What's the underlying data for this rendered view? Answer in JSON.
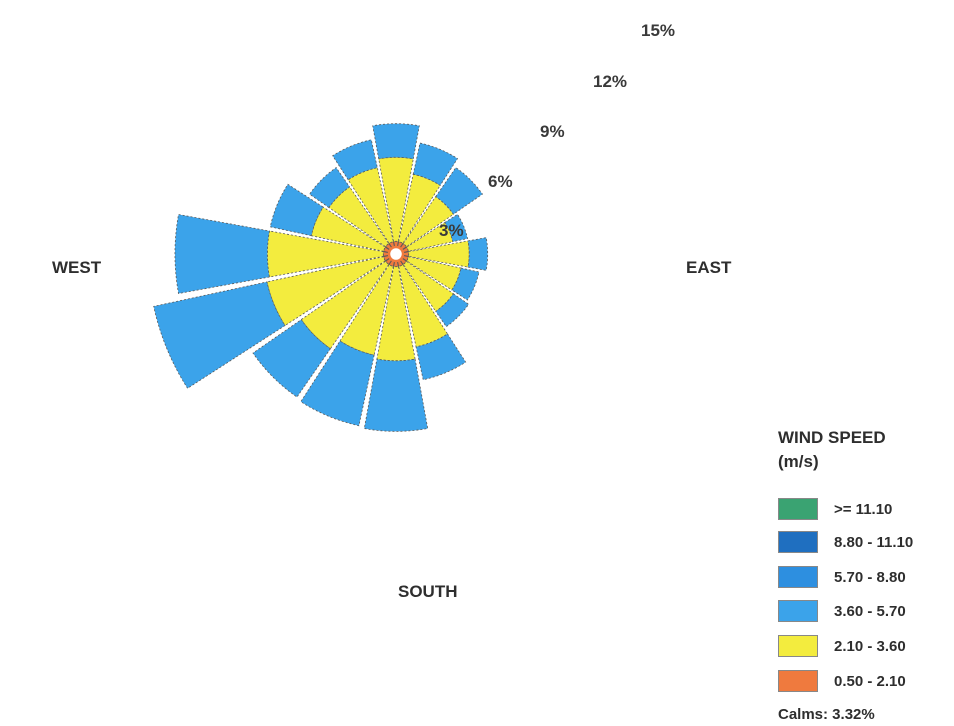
{
  "chart_data": {
    "type": "windrose",
    "ring_labels": [
      "3%",
      "6%",
      "9%",
      "12%",
      "15%"
    ],
    "ring_values": [
      3,
      6,
      9,
      12,
      15
    ],
    "compass_labels": {
      "west": "WEST",
      "east": "EAST",
      "south": "SOUTH"
    },
    "legend": {
      "title_line1": "WIND SPEED",
      "title_line2": "(m/s)",
      "bins": [
        {
          "label": ">= 11.10",
          "color": "#3aa372"
        },
        {
          "label": "8.80 - 11.10",
          "color": "#1f6fc0"
        },
        {
          "label": "5.70 - 8.80",
          "color": "#2d8fe0"
        },
        {
          "label": "3.60 - 5.70",
          "color": "#3ba3ea"
        },
        {
          "label": "2.10 - 3.60",
          "color": "#f3ec3e"
        },
        {
          "label": "0.50 - 2.10",
          "color": "#ef7a3e"
        }
      ]
    },
    "calms_label": "Calms: 3.32%",
    "directions_deg": [
      0,
      22.5,
      45,
      67.5,
      90,
      112.5,
      135,
      157.5,
      180,
      202.5,
      225,
      247.5,
      270,
      292.5,
      315,
      337.5
    ],
    "series": [
      {
        "name": "0.50 - 2.10",
        "values": [
          0.4,
          0.4,
          0.4,
          0.4,
          0.4,
          0.4,
          0.4,
          0.4,
          0.4,
          0.4,
          0.4,
          0.4,
          0.4,
          0.4,
          0.4,
          0.4
        ]
      },
      {
        "name": "2.10 - 3.60",
        "values": [
          5.0,
          4.1,
          3.4,
          2.7,
          3.6,
          3.2,
          3.4,
          4.9,
          5.6,
          5.4,
          6.1,
          7.1,
          6.9,
          4.4,
          4.1,
          4.5
        ]
      },
      {
        "name": "3.60 - 5.70",
        "values": [
          2.0,
          1.9,
          2.1,
          0.9,
          1.1,
          1.1,
          1.1,
          2.0,
          4.2,
          4.3,
          3.5,
          6.9,
          5.5,
          2.5,
          1.4,
          1.7
        ]
      }
    ]
  }
}
